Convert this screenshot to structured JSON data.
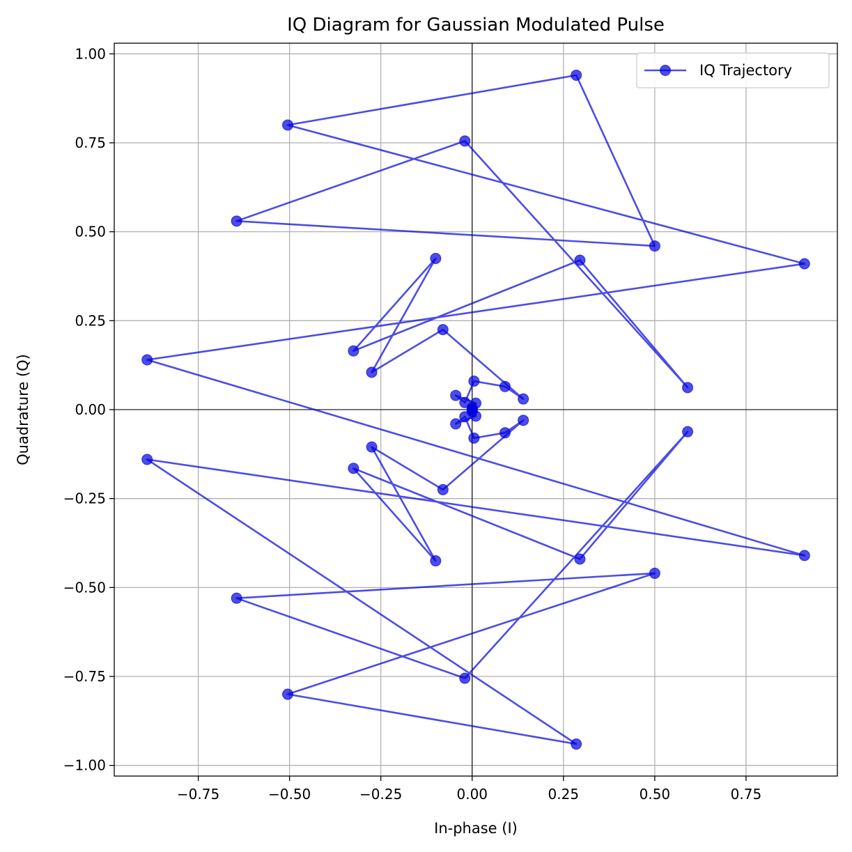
{
  "chart_data": {
    "type": "line",
    "title": "IQ Diagram for Gaussian Modulated Pulse",
    "xlabel": "In-phase (I)",
    "ylabel": "Quadrature (Q)",
    "xlim": [
      -0.98,
      1.0
    ],
    "ylim": [
      -1.03,
      1.03
    ],
    "xticks": [
      -0.75,
      -0.5,
      -0.25,
      0.0,
      0.25,
      0.5,
      0.75
    ],
    "xtick_labels": [
      "−0.75",
      "−0.50",
      "−0.25",
      "0.00",
      "0.25",
      "0.50",
      "0.75"
    ],
    "yticks": [
      -1.0,
      -0.75,
      -0.5,
      -0.25,
      0.0,
      0.25,
      0.5,
      0.75,
      1.0
    ],
    "ytick_labels": [
      "−1.00",
      "−0.75",
      "−0.50",
      "−0.25",
      "0.00",
      "0.25",
      "0.50",
      "0.75",
      "1.00"
    ],
    "grid": true,
    "zero_lines": true,
    "legend_position": "top-right",
    "series": [
      {
        "name": "IQ Trajectory",
        "color": "#0000dd",
        "marker": "circle",
        "x": [
          0.0,
          0.0,
          0.01,
          -0.045,
          -0.02,
          0.005,
          0.09,
          0.14,
          -0.08,
          -0.275,
          -0.1,
          -0.325,
          0.295,
          0.59,
          -0.02,
          -0.645,
          0.5,
          0.285,
          -0.505,
          0.91,
          -0.89,
          0.91,
          -0.89,
          0.285,
          -0.505,
          0.5,
          -0.645,
          -0.02,
          0.59,
          0.295,
          -0.325,
          -0.1,
          -0.275,
          -0.08,
          0.14,
          0.09,
          0.005,
          -0.02,
          -0.045,
          0.01,
          0.0,
          0.0
        ],
        "y": [
          0.0,
          0.005,
          0.018,
          0.04,
          0.02,
          0.08,
          0.065,
          0.03,
          0.225,
          0.105,
          0.425,
          0.165,
          0.42,
          0.062,
          0.755,
          0.53,
          0.46,
          0.94,
          0.8,
          0.41,
          0.14,
          -0.41,
          -0.14,
          -0.94,
          -0.8,
          -0.46,
          -0.53,
          -0.755,
          -0.062,
          -0.42,
          -0.165,
          -0.425,
          -0.105,
          -0.225,
          -0.03,
          -0.065,
          -0.08,
          -0.02,
          -0.04,
          -0.018,
          -0.005,
          0.0
        ]
      }
    ]
  }
}
